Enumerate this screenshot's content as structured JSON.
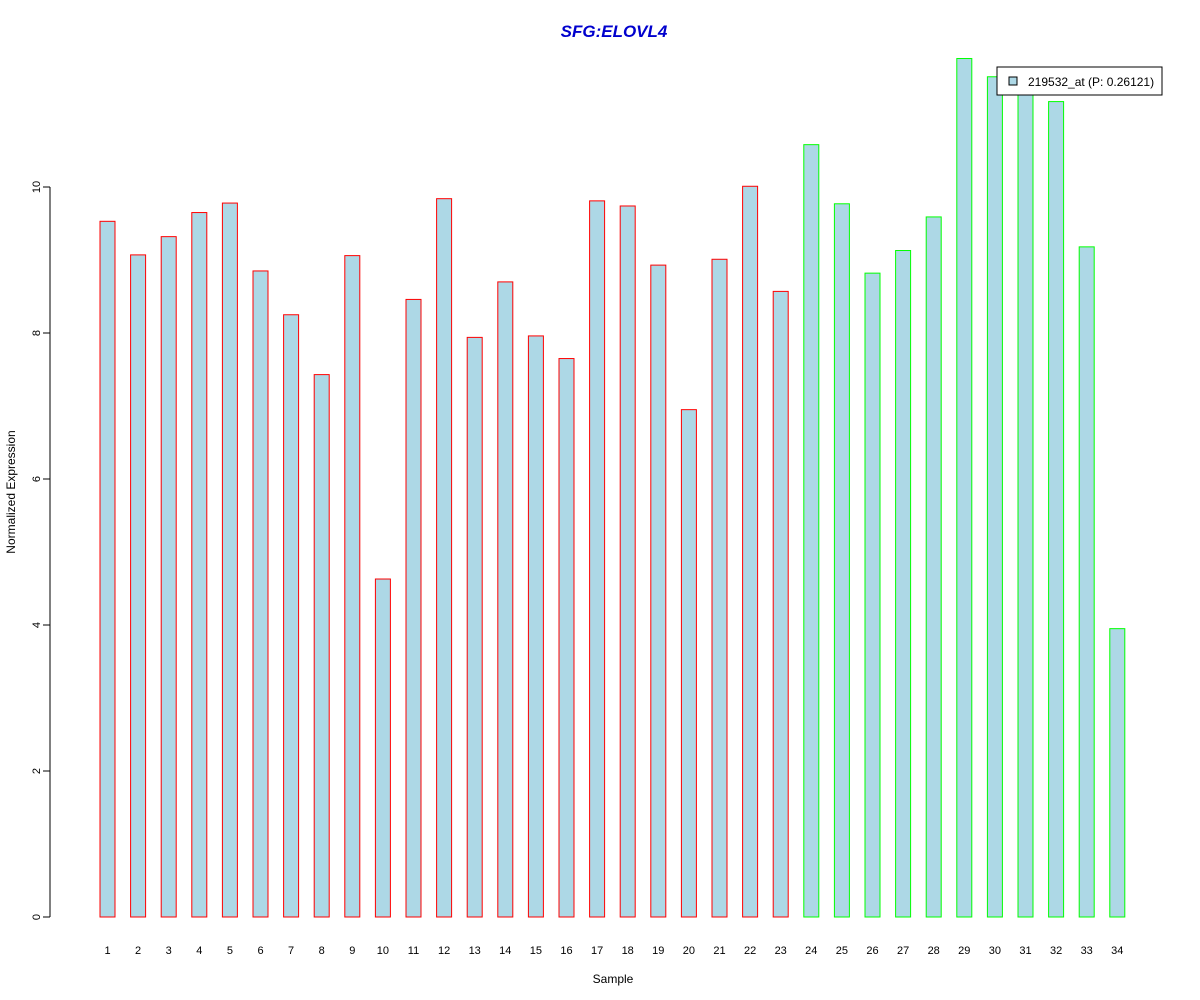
{
  "chart_data": {
    "type": "bar",
    "title": "SFG:ELOVL4",
    "xlabel": "Sample",
    "ylabel": "Normalized Expression",
    "ylim": [
      0,
      11.95
    ],
    "yticks": [
      0,
      2,
      4,
      6,
      8,
      10
    ],
    "grid": false,
    "legend_position": "top-right",
    "categories": [
      "1",
      "2",
      "3",
      "4",
      "5",
      "6",
      "7",
      "8",
      "9",
      "10",
      "11",
      "12",
      "13",
      "14",
      "15",
      "16",
      "17",
      "18",
      "19",
      "20",
      "21",
      "22",
      "23",
      "24",
      "25",
      "26",
      "27",
      "28",
      "29",
      "30",
      "31",
      "32",
      "33",
      "34"
    ],
    "series": [
      {
        "name": "219532_at (P: 0.26121)",
        "values": [
          9.53,
          9.07,
          9.32,
          9.65,
          9.78,
          8.85,
          8.25,
          7.43,
          9.06,
          4.63,
          8.46,
          9.84,
          7.94,
          8.7,
          7.96,
          7.65,
          9.81,
          9.74,
          8.93,
          6.95,
          9.01,
          10.01,
          8.57,
          10.58,
          9.77,
          8.82,
          9.13,
          9.59,
          11.76,
          11.51,
          11.3,
          11.17,
          9.18,
          3.95
        ]
      }
    ],
    "group_sizes": [
      23,
      11
    ],
    "colors": {
      "bar_fill": "#add8e6",
      "group1_border": "#ff0000",
      "group2_border": "#00ff00",
      "title": "#0000cd",
      "axis": "#000000"
    }
  }
}
